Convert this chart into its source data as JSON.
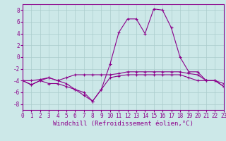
{
  "x": [
    0,
    1,
    2,
    3,
    4,
    5,
    6,
    7,
    8,
    9,
    10,
    11,
    12,
    13,
    14,
    15,
    16,
    17,
    18,
    19,
    20,
    21,
    22,
    23
  ],
  "line1": [
    -4,
    -4.7,
    -4,
    -4.5,
    -4.5,
    -5,
    -5.5,
    -6,
    -7.5,
    -5.5,
    -3.5,
    -3.2,
    -3,
    -3,
    -3,
    -3,
    -3,
    -3,
    -3,
    -3.5,
    -4,
    -4,
    -4,
    -5
  ],
  "line2": [
    -4,
    -4.7,
    -4,
    -3.5,
    -4,
    -4.5,
    -5.5,
    -6.5,
    -7.5,
    -5.5,
    -1.2,
    4.2,
    6.5,
    6.5,
    4,
    8.2,
    8,
    5,
    0,
    -2.5,
    -2.5,
    -4,
    -4,
    -4.5
  ],
  "line3": [
    -4,
    -4.0,
    -3.8,
    -3.5,
    -4,
    -3.5,
    -3.0,
    -3.0,
    -3.0,
    -3.0,
    -3.0,
    -2.8,
    -2.5,
    -2.5,
    -2.5,
    -2.5,
    -2.5,
    -2.5,
    -2.5,
    -2.8,
    -3,
    -4,
    -4,
    -5
  ],
  "bg_color": "#cce8e8",
  "line_color": "#8b008b",
  "grid_color": "#aacccc",
  "xlabel": "Windchill (Refroidissement éolien,°C)",
  "ylim": [
    -9,
    9
  ],
  "xlim": [
    0,
    23
  ],
  "yticks": [
    -8,
    -6,
    -4,
    -2,
    0,
    2,
    4,
    6,
    8
  ],
  "xticks": [
    0,
    1,
    2,
    3,
    4,
    5,
    6,
    7,
    8,
    9,
    10,
    11,
    12,
    13,
    14,
    15,
    16,
    17,
    18,
    19,
    20,
    21,
    22,
    23
  ],
  "tick_fontsize": 5.5,
  "xlabel_fontsize": 6.5,
  "marker": "+",
  "markersize": 3,
  "linewidth": 0.8
}
